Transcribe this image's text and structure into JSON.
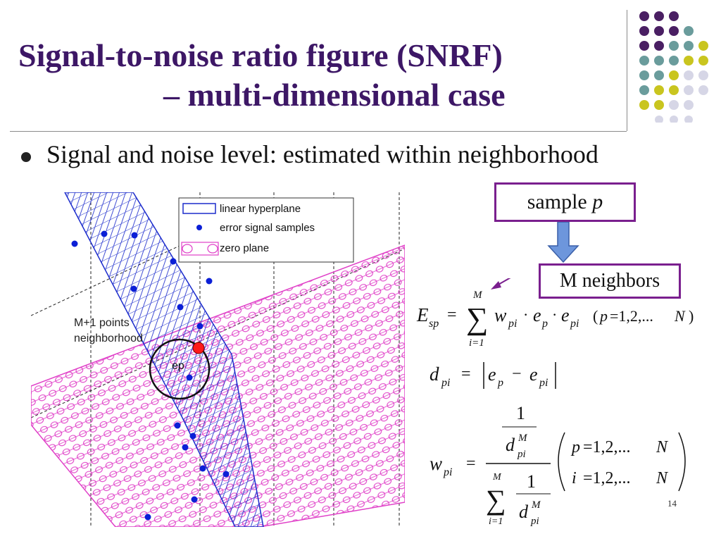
{
  "slide": {
    "title_line1": "Signal-to-noise ratio figure (SNRF)",
    "title_line2": "– multi-dimensional case",
    "bullet": "Signal and noise level: estimated within neighborhood",
    "page_number": "14",
    "colors": {
      "title": "#3d1766",
      "dot_purple": "#4a1f63",
      "dot_teal": "#6a9c9c",
      "dot_yellow": "#c9c51f",
      "dot_lavender": "#d6d6e6",
      "box_border": "#7a1f8e"
    }
  },
  "figure": {
    "legend": {
      "hyperplane": "linear hyperplane",
      "samples": "error signal samples",
      "zero": "zero plane"
    },
    "annotation_line1": "M+1 points",
    "annotation_line2": "neighborhood",
    "ep_label": "ep",
    "colors": {
      "hyperplane": "#1c2ccc",
      "zero_plane": "#e040c8",
      "sample": "#0b1fd6",
      "center_sample": "#ff1a1a"
    }
  },
  "callouts": {
    "sample_prefix": "sample ",
    "sample_var": "p",
    "neighbors": "M neighbors"
  },
  "equations": {
    "E_lhs_main": "E",
    "E_lhs_sub": "sp",
    "equals": "=",
    "sum_upper": "M",
    "sum_lower": "i=1",
    "E_term": "w",
    "E_term_sub": "pi",
    "E_e": "e",
    "E_e_p_sub": "p",
    "E_range_open": "(",
    "E_range_mid": "p",
    "E_range_vals": "=1,2,...",
    "E_range_N": "N",
    "E_range_close": ")",
    "d_lhs": "d",
    "d_sub": "pi",
    "w_lhs": "w",
    "w_sub": "pi",
    "one": "1",
    "sup_M": "M",
    "cond1_var": "p",
    "cond1_rest": "=1,2,...",
    "cond1_N": "N",
    "cond2_var": "i",
    "cond2_rest": "=1,2,...",
    "cond2_N": "N"
  }
}
